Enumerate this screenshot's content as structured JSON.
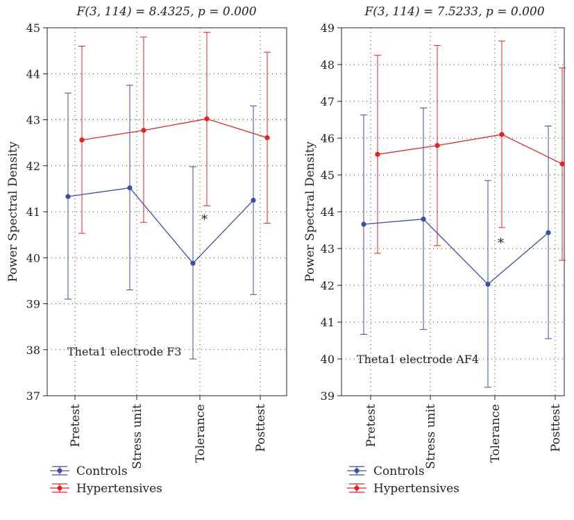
{
  "legend": {
    "controls_label": "Controls",
    "hypertensives_label": "Hypertensives"
  },
  "colors": {
    "controls": "#3a4fa3",
    "hypertensives": "#e02424",
    "grid": "#333333"
  },
  "chart_data": [
    {
      "type": "line",
      "title": "F(3, 114) = 8.4325, p = 0.000",
      "ylabel": "Power Spectral Density",
      "annotation": "Theta1 electrode F3",
      "marker": "*",
      "marker_category": "Tolerance",
      "categories": [
        "Pretest",
        "Stress unit",
        "Tolerance",
        "Posttest"
      ],
      "ylim": [
        37,
        45
      ],
      "yticks": [
        37,
        38,
        39,
        40,
        41,
        42,
        43,
        44,
        45
      ],
      "grid": true,
      "legend_position": "bottom",
      "series": [
        {
          "name": "Controls",
          "values": [
            41.33,
            41.52,
            39.88,
            41.25
          ],
          "lower": [
            39.1,
            39.3,
            37.8,
            39.2
          ],
          "upper": [
            43.58,
            43.75,
            41.98,
            43.3
          ]
        },
        {
          "name": "Hypertensives",
          "values": [
            42.56,
            42.77,
            43.02,
            42.61
          ],
          "lower": [
            40.53,
            40.77,
            41.13,
            40.75
          ],
          "upper": [
            44.6,
            44.8,
            44.9,
            44.47
          ]
        }
      ]
    },
    {
      "type": "line",
      "title": "F(3, 114) = 7.5233, p = 0.000",
      "ylabel": "Power Spectral Density",
      "annotation": "Theta1 electrode AF4",
      "marker": "*",
      "marker_category": "Tolerance",
      "categories": [
        "Pretest",
        "Stress unit",
        "Tolerance",
        "Posttest"
      ],
      "ylim": [
        39,
        49
      ],
      "yticks": [
        39,
        40,
        41,
        42,
        43,
        44,
        45,
        46,
        47,
        48,
        49
      ],
      "grid": true,
      "legend_position": "bottom",
      "series": [
        {
          "name": "Controls",
          "values": [
            43.66,
            43.8,
            42.03,
            43.43
          ],
          "lower": [
            40.67,
            40.8,
            39.23,
            40.55
          ],
          "upper": [
            46.63,
            46.82,
            44.85,
            46.33
          ]
        },
        {
          "name": "Hypertensives",
          "values": [
            45.56,
            45.8,
            46.1,
            45.3
          ],
          "lower": [
            42.87,
            43.08,
            43.57,
            42.68
          ],
          "upper": [
            48.25,
            48.52,
            48.64,
            47.91
          ]
        }
      ]
    }
  ]
}
